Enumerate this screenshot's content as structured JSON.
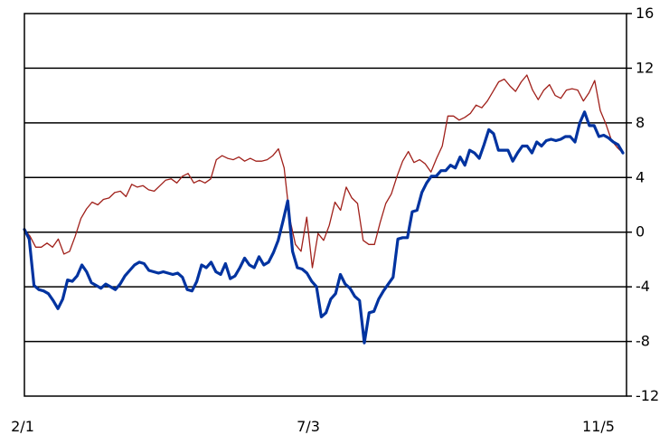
{
  "chart_data": {
    "type": "line",
    "title": "",
    "xlabel": "",
    "ylabel": "",
    "x_ticks": [
      "2/1",
      "7/3",
      "11/5"
    ],
    "y_ticks": [
      "16",
      "12",
      "8",
      "4",
      "0",
      "-4",
      "-8",
      "-12"
    ],
    "y_tick_values": [
      16,
      12,
      8,
      4,
      0,
      -4,
      -8,
      -12
    ],
    "ylim": [
      -12,
      16
    ],
    "grid": "horizontal",
    "y_axis_side": "right",
    "colors": {
      "series_1": "#0033a0",
      "series_2": "#a0201a",
      "grid": "#000000"
    },
    "series": [
      {
        "values": [
          0.2,
          -0.5,
          -3.9,
          -4.2,
          -4.3,
          -4.5,
          -5.0,
          -5.6,
          -4.9,
          -3.5,
          -3.6,
          -3.2,
          -2.4,
          -2.9,
          -3.7,
          -3.9,
          -4.1,
          -3.8,
          -4.0,
          -4.2,
          -3.8,
          -3.2,
          -2.8,
          -2.4,
          -2.2,
          -2.3,
          -2.8,
          -2.9,
          -3.0,
          -2.9,
          -3.0,
          -3.1,
          -3.0,
          -3.3,
          -4.2,
          -4.3,
          -3.6,
          -2.4,
          -2.6,
          -2.2,
          -2.9,
          -3.1,
          -2.3,
          -3.4,
          -3.2,
          -2.6,
          -1.9,
          -2.4,
          -2.6,
          -1.8,
          -2.4,
          -2.2,
          -1.5,
          -0.6,
          0.8,
          2.3,
          -1.4,
          -2.6,
          -2.7,
          -3.0,
          -3.6,
          -4.0,
          -6.2,
          -5.9,
          -4.9,
          -4.5,
          -3.1,
          -3.8,
          -4.1,
          -4.7,
          -5.0,
          -8.1,
          -5.9,
          -5.8,
          -4.9,
          -4.3,
          -3.8,
          -3.3,
          -0.5,
          -0.4,
          -0.4,
          1.5,
          1.6,
          2.9,
          3.6,
          4.1,
          4.1,
          4.5,
          4.5,
          4.9,
          4.7,
          5.5,
          4.9,
          6.0,
          5.8,
          5.4,
          6.4,
          7.5,
          7.2,
          6.0,
          6.0,
          6.0,
          5.2,
          5.8,
          6.3,
          6.3,
          5.8,
          6.6,
          6.3,
          6.7,
          6.8,
          6.7,
          6.8,
          7.0,
          7.0,
          6.6,
          8.0,
          8.8,
          7.8,
          7.8,
          7.0,
          7.1,
          6.9,
          6.6,
          6.4,
          5.8
        ]
      },
      {
        "values": [
          0.2,
          -0.3,
          -1.1,
          -1.1,
          -0.8,
          -1.1,
          -0.5,
          -1.6,
          -1.4,
          -0.3,
          1.0,
          1.7,
          2.2,
          2.0,
          2.4,
          2.5,
          2.9,
          3.0,
          2.6,
          3.5,
          3.3,
          3.4,
          3.1,
          3.0,
          3.4,
          3.8,
          3.9,
          3.6,
          4.1,
          4.3,
          3.6,
          3.8,
          3.6,
          3.9,
          5.3,
          5.6,
          5.4,
          5.3,
          5.5,
          5.2,
          5.4,
          5.2,
          5.2,
          5.3,
          5.6,
          6.1,
          4.7,
          1.0,
          -0.9,
          -1.4,
          1.1,
          -2.6,
          -0.1,
          -0.6,
          0.5,
          2.2,
          1.6,
          3.3,
          2.5,
          2.1,
          -0.6,
          -0.9,
          -0.9,
          0.7,
          2.1,
          2.8,
          4.1,
          5.2,
          5.9,
          5.1,
          5.3,
          5.0,
          4.4,
          5.4,
          6.3,
          8.5,
          8.5,
          8.2,
          8.4,
          8.7,
          9.3,
          9.1,
          9.6,
          10.3,
          11.0,
          11.2,
          10.7,
          10.3,
          11.0,
          11.5,
          10.4,
          9.7,
          10.4,
          10.8,
          10.0,
          9.8,
          10.4,
          10.5,
          10.4,
          9.6,
          10.2,
          11.1,
          8.9,
          7.9,
          6.7,
          6.2,
          5.8
        ]
      }
    ]
  }
}
